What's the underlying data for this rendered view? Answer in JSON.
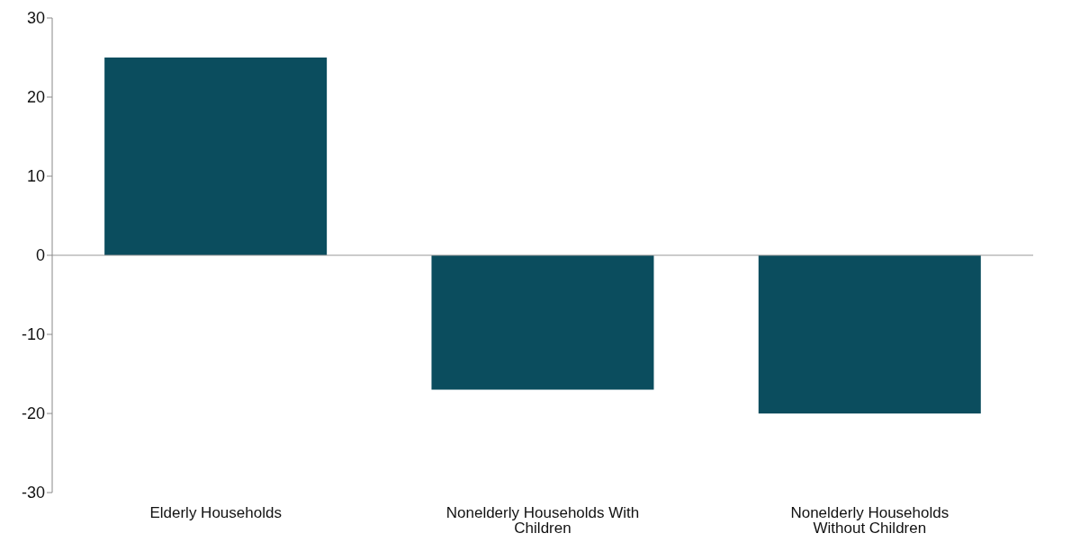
{
  "chart_data": {
    "type": "bar",
    "categories": [
      "Elderly Households",
      "Nonelderly Households With Children",
      "Nonelderly Households Without Children"
    ],
    "values": [
      25,
      -17,
      -20
    ],
    "color": "#0b4d5e",
    "ylim": [
      -30,
      30
    ],
    "yticks": [
      -30,
      -20,
      -10,
      0,
      10,
      20,
      30
    ],
    "ref_lines": [
      {
        "axis": "y",
        "value": 0,
        "color": "#999999"
      }
    ],
    "legend": false
  }
}
